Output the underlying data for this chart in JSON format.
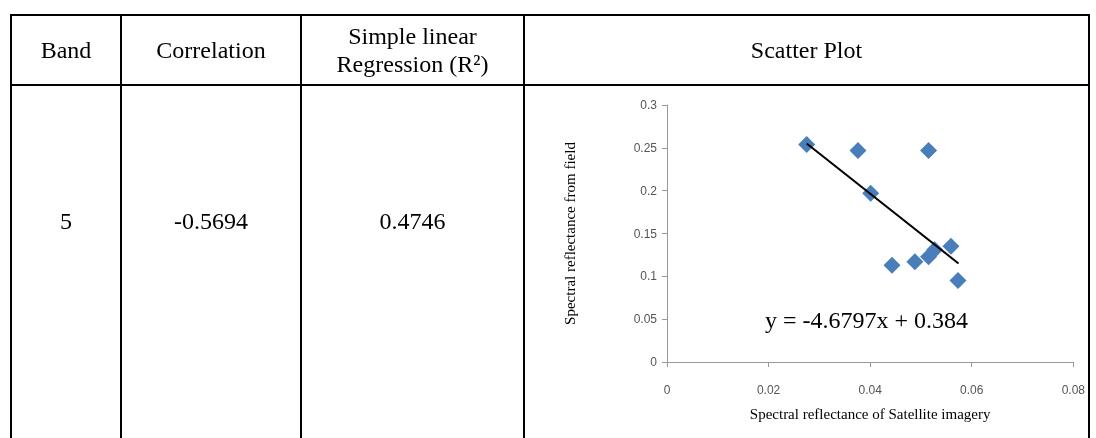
{
  "chart_data": [
    {
      "type": "other",
      "annotations": [
        "Band",
        "Correlation",
        "Simple linear Regression (R²)",
        "5",
        "-0.5694",
        "0.4746"
      ]
    },
    {
      "type": "scatter",
      "title": "Scatter Plot",
      "xlabel": "Spectral reflectance of Satellite imagery",
      "ylabel": "Spectral reflectance from field",
      "xlim": [
        0,
        0.08
      ],
      "xticks": [
        0,
        0.02,
        0.04,
        0.06,
        0.08
      ],
      "ylim": [
        0,
        0.3
      ],
      "yticks": [
        0,
        0.05,
        0.1,
        0.15,
        0.2,
        0.25,
        0.3
      ],
      "grid": false,
      "annotations": [
        "y = -4.6797x + 0.384"
      ],
      "series": [
        {
          "type": "scatter",
          "color": "#4a7ebb",
          "marker": "diamond",
          "x": [
            0.0275,
            0.0376,
            0.0515,
            0.0401,
            0.0443,
            0.0488,
            0.0515,
            0.0527,
            0.0559,
            0.0573
          ],
          "values": [
            0.254,
            0.247,
            0.247,
            0.197,
            0.113,
            0.117,
            0.123,
            0.131,
            0.135,
            0.095
          ]
        },
        {
          "type": "line",
          "color": "#000000",
          "marker": "none",
          "x": [
            0.0275,
            0.0574
          ],
          "values": [
            0.255,
            0.115
          ]
        }
      ]
    }
  ]
}
